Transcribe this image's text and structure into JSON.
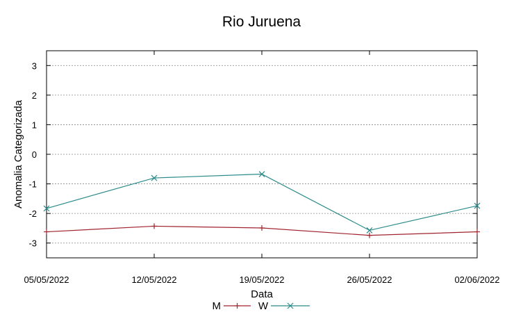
{
  "chart_data": {
    "type": "line",
    "title": "Rio Juruena",
    "xlabel": "Data",
    "ylabel": "Anomalia Categorizada",
    "x": [
      "05/05/2022",
      "12/05/2022",
      "19/05/2022",
      "26/05/2022",
      "02/06/2022"
    ],
    "ylim": [
      -3.5,
      3.5
    ],
    "yticks": [
      3,
      2,
      1,
      0,
      -1,
      -2,
      -3
    ],
    "grid": "horizontal-dashed",
    "legend_position": "bottom-center",
    "series": [
      {
        "name": "M",
        "color": "#a0232d",
        "marker": "plus",
        "values": [
          -2.62,
          -2.43,
          -2.49,
          -2.74,
          -2.62
        ]
      },
      {
        "name": "W",
        "color": "#2a8a8a",
        "marker": "x",
        "values": [
          -1.83,
          -0.8,
          -0.67,
          -2.57,
          -1.74
        ]
      }
    ]
  }
}
